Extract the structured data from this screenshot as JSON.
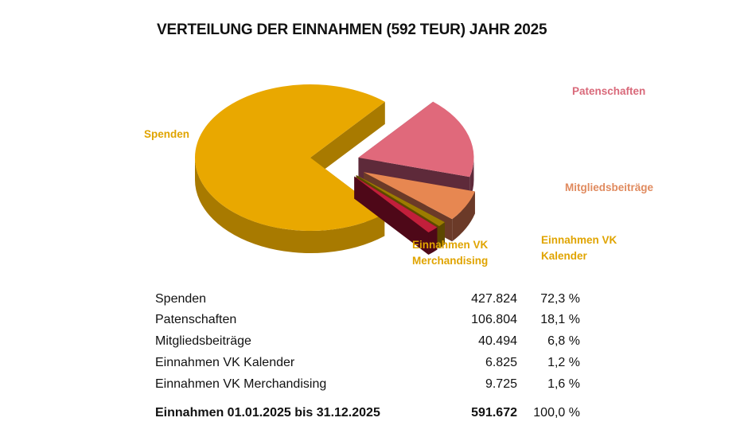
{
  "chart_data": {
    "type": "pie",
    "title": "VERTEILUNG DER EINNAHMEN (592 TEUR) JAHR 2025",
    "categories": [
      "Spenden",
      "Patenschaften",
      "Mitgliedsbeiträge",
      "Einnahmen VK Kalender",
      "Einnahmen VK Merchandising"
    ],
    "values": [
      427824,
      106804,
      40494,
      6825,
      9725
    ],
    "percent": [
      72.3,
      18.1,
      6.8,
      1.2,
      1.6
    ],
    "labels": {
      "spenden": "Spenden",
      "patenschaften": "Patenschaften",
      "mitglied": "Mitgliedsbeiträge",
      "kalender_1": "Einnahmen VK",
      "kalender_2": "Kalender",
      "merch_1": "Einnahmen VK",
      "merch_2": "Merchandising"
    },
    "colors": {
      "top": [
        "#E9A800",
        "#E0697B",
        "#E78751",
        "#9C7C00",
        "#C21F3B"
      ],
      "side": [
        "#A87A00",
        "#5E2A3A",
        "#6B3A28",
        "#5C4800",
        "#4E0818"
      ],
      "label": [
        "#E0A400",
        "#D9697A",
        "#E08A5E",
        "#E0A400",
        "#E0A400"
      ]
    }
  },
  "table": {
    "rows": [
      {
        "label": "Spenden",
        "value": "427.824",
        "percent": "72,3 %"
      },
      {
        "label": "Patenschaften",
        "value": "106.804",
        "percent": "18,1 %"
      },
      {
        "label": "Mitgliedsbeiträge",
        "value": "40.494",
        "percent": "6,8 %"
      },
      {
        "label": "Einnahmen VK Kalender",
        "value": "6.825",
        "percent": "1,2 %"
      },
      {
        "label": "Einnahmen VK Merchandising",
        "value": "9.725",
        "percent": "1,6 %"
      }
    ],
    "total": {
      "label": "Einnahmen 01.01.2025 bis 31.12.2025",
      "value": "591.672",
      "percent": "100,0 %"
    }
  }
}
